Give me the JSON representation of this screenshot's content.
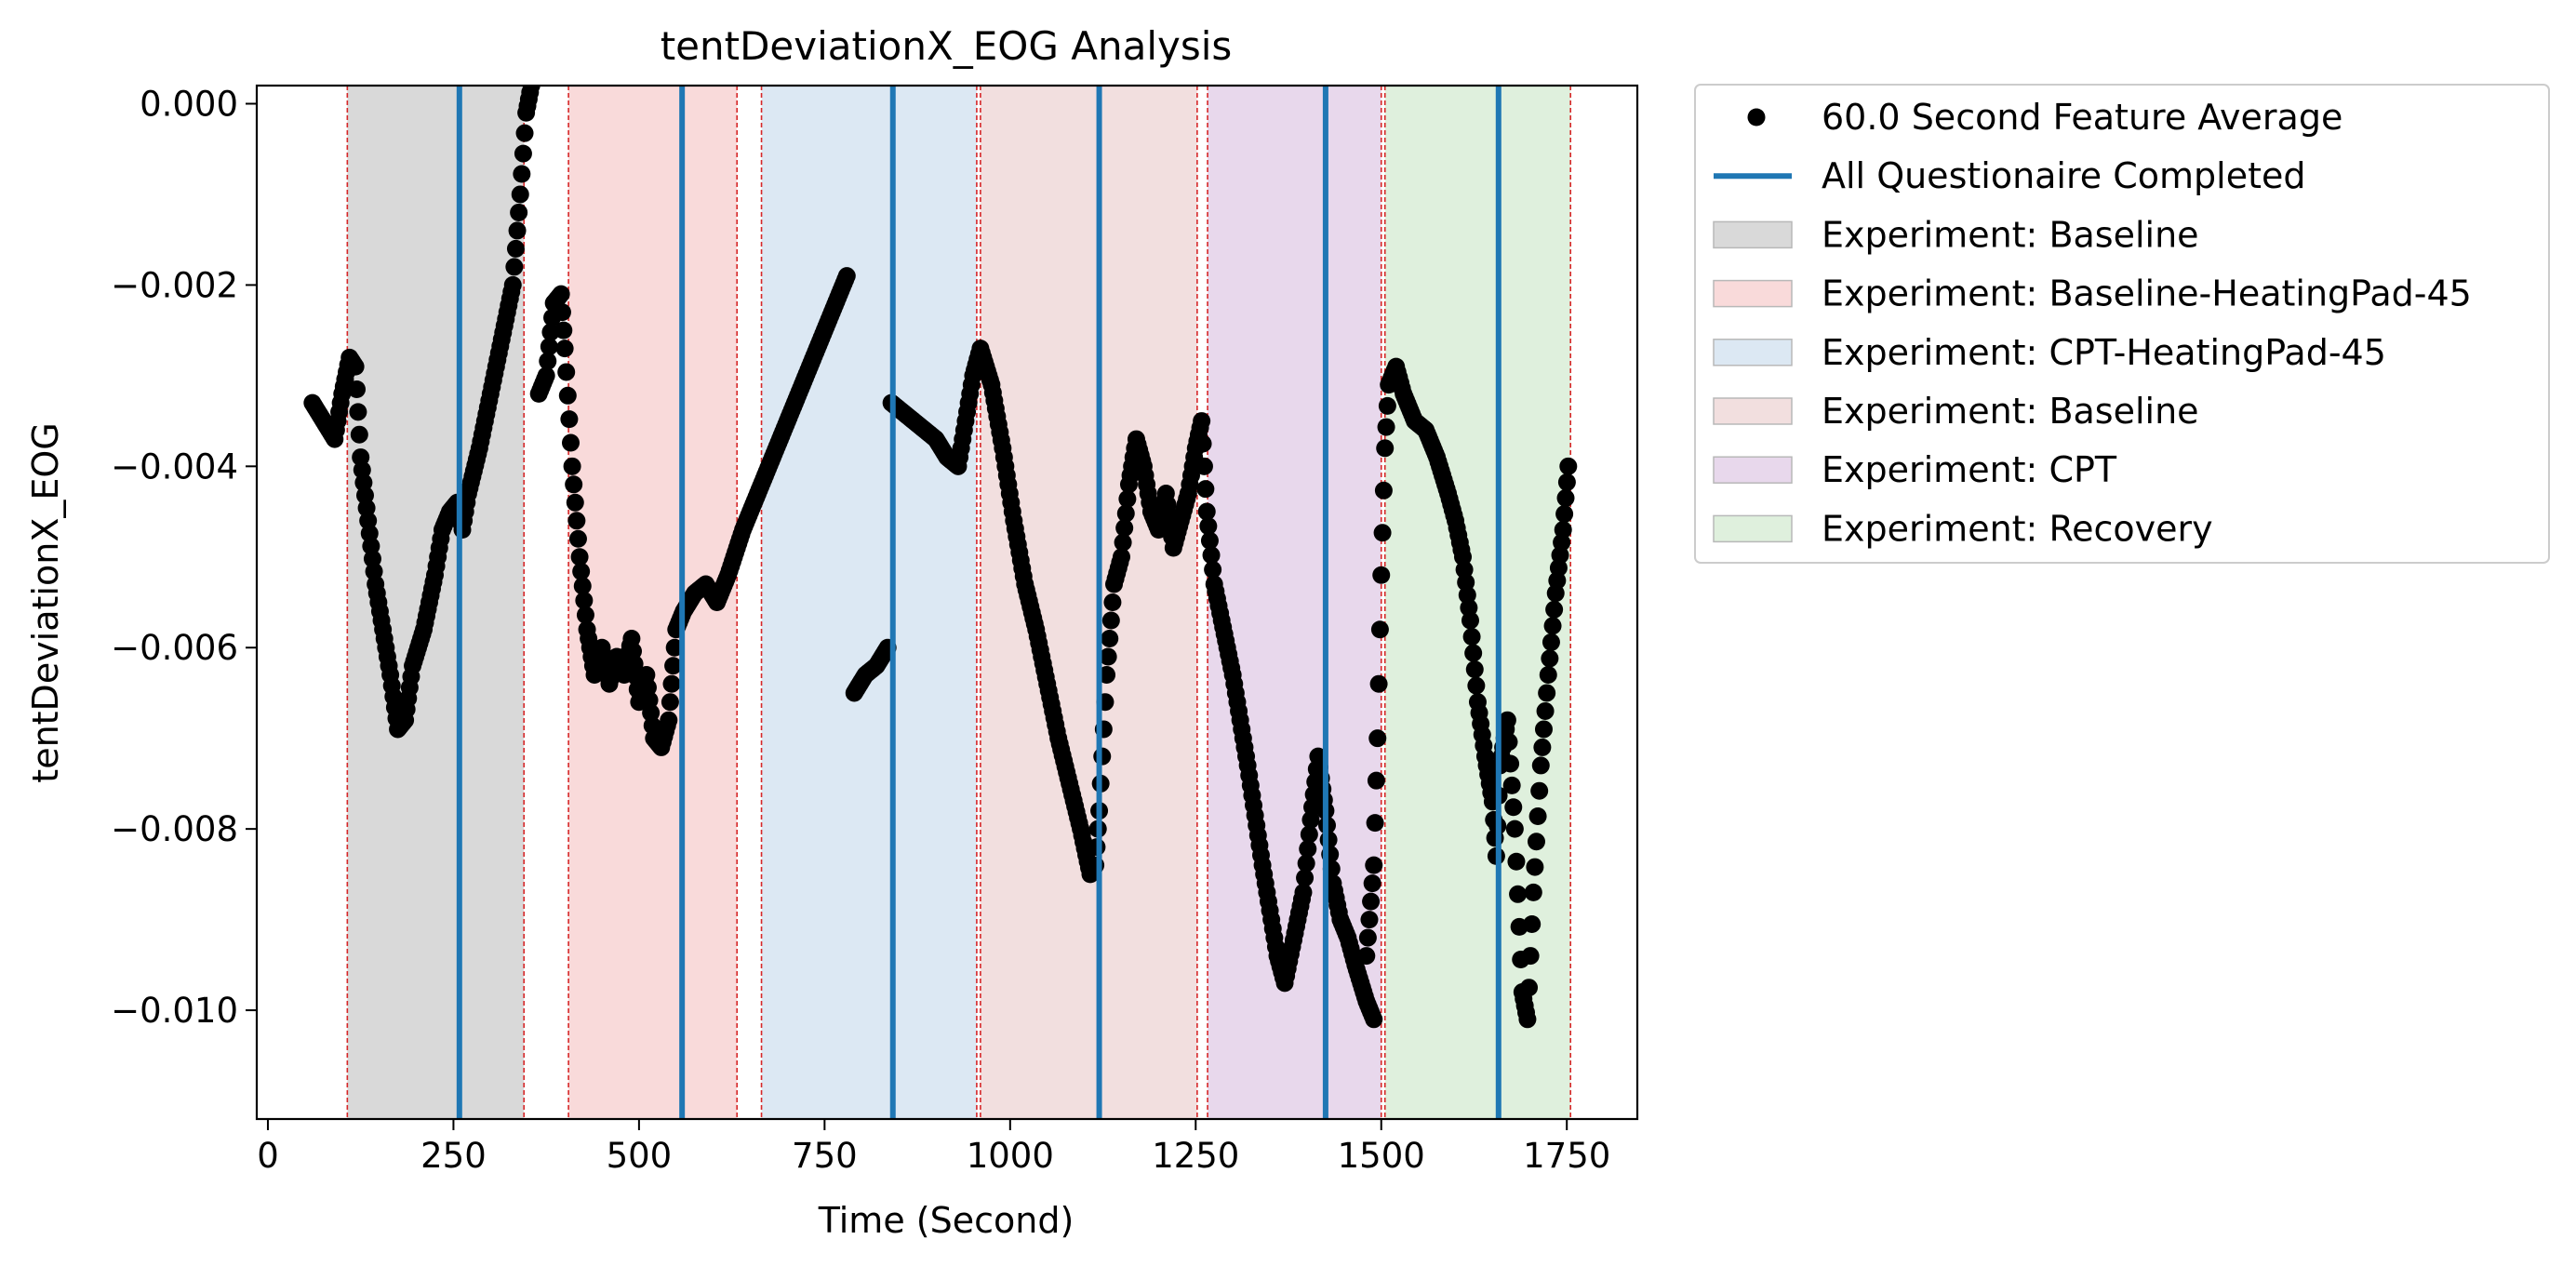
{
  "chart_data": {
    "type": "scatter",
    "title": "tentDeviationX_EOG Analysis",
    "xlabel": "Time (Second)",
    "ylabel": "tentDeviationX_EOG",
    "xlim": [
      -15,
      1845
    ],
    "ylim": [
      -0.0112,
      0.0002
    ],
    "x_ticks": [
      0,
      250,
      500,
      750,
      1000,
      1250,
      1500,
      1750
    ],
    "x_tick_labels": [
      "0",
      "250",
      "500",
      "750",
      "1000",
      "1250",
      "1500",
      "1750"
    ],
    "y_ticks": [
      0.0,
      -0.002,
      -0.004,
      -0.006,
      -0.008,
      -0.01
    ],
    "y_tick_labels": [
      "0.000",
      "−0.002",
      "−0.004",
      "−0.006",
      "−0.008",
      "−0.010"
    ],
    "grid": false,
    "legend_position": "outside-right",
    "legend": [
      {
        "label": "60.0 Second Feature Average",
        "kind": "marker",
        "color": "#000000"
      },
      {
        "label": "All Questionaire Completed",
        "kind": "line",
        "color": "#1f77b4"
      },
      {
        "label": "Experiment: Baseline",
        "kind": "patch",
        "color": "#d9d9d9"
      },
      {
        "label": "Experiment: Baseline-HeatingPad-45",
        "kind": "patch",
        "color": "#f9dada"
      },
      {
        "label": "Experiment: CPT-HeatingPad-45",
        "kind": "patch",
        "color": "#dce8f3"
      },
      {
        "label": "Experiment: Baseline",
        "kind": "patch",
        "color": "#f2dfdf"
      },
      {
        "label": "Experiment: CPT",
        "kind": "patch",
        "color": "#e8d8ec"
      },
      {
        "label": "Experiment: Recovery",
        "kind": "patch",
        "color": "#dff0dd"
      }
    ],
    "phases": [
      {
        "name": "Experiment: Baseline",
        "start": 107,
        "end": 345,
        "color": "#d9d9d9"
      },
      {
        "name": "Experiment: Baseline-HeatingPad-45",
        "start": 405,
        "end": 632,
        "color": "#f9dada"
      },
      {
        "name": "Experiment: CPT-HeatingPad-45",
        "start": 665,
        "end": 955,
        "color": "#dce8f3"
      },
      {
        "name": "Experiment: Baseline",
        "start": 960,
        "end": 1252,
        "color": "#f2dfdf"
      },
      {
        "name": "Experiment: CPT",
        "start": 1266,
        "end": 1500,
        "color": "#e8d8ec"
      },
      {
        "name": "Experiment: Recovery",
        "start": 1505,
        "end": 1755,
        "color": "#dff0dd"
      }
    ],
    "phase_boundaries": [
      107,
      345,
      405,
      632,
      665,
      955,
      960,
      1252,
      1266,
      1500,
      1505,
      1755
    ],
    "questionnaire_completed": [
      258,
      558,
      842,
      1120,
      1425,
      1658
    ],
    "series": [
      {
        "name": "60.0 Second Feature Average",
        "color": "#000000",
        "segments": [
          [
            [
              60,
              -0.0033
            ],
            [
              75,
              -0.0035
            ],
            [
              90,
              -0.0037
            ],
            [
              100,
              -0.0032
            ],
            [
              110,
              -0.0028
            ],
            [
              118,
              -0.0029
            ],
            [
              125,
              -0.0039
            ],
            [
              135,
              -0.0046
            ],
            [
              145,
              -0.0053
            ],
            [
              155,
              -0.0058
            ],
            [
              165,
              -0.0063
            ],
            [
              175,
              -0.0069
            ],
            [
              185,
              -0.0068
            ],
            [
              195,
              -0.0062
            ],
            [
              210,
              -0.0058
            ],
            [
              225,
              -0.0052
            ],
            [
              235,
              -0.0047
            ],
            [
              245,
              -0.0045
            ],
            [
              255,
              -0.0044
            ],
            [
              262,
              -0.0047
            ],
            [
              270,
              -0.0043
            ],
            [
              285,
              -0.0038
            ],
            [
              300,
              -0.0032
            ],
            [
              315,
              -0.0026
            ],
            [
              330,
              -0.002
            ],
            [
              340,
              -0.001
            ],
            [
              348,
              -0.0001
            ],
            [
              355,
              0.0002
            ]
          ],
          [
            [
              365,
              -0.0032
            ],
            [
              375,
              -0.003
            ],
            [
              385,
              -0.0022
            ],
            [
              395,
              -0.0021
            ],
            [
              400,
              -0.0027
            ],
            [
              410,
              -0.004
            ],
            [
              420,
              -0.005
            ],
            [
              430,
              -0.0058
            ],
            [
              440,
              -0.0063
            ],
            [
              450,
              -0.006
            ],
            [
              460,
              -0.0064
            ],
            [
              470,
              -0.0061
            ],
            [
              480,
              -0.0063
            ],
            [
              490,
              -0.0059
            ],
            [
              500,
              -0.0066
            ],
            [
              510,
              -0.0063
            ],
            [
              520,
              -0.007
            ],
            [
              530,
              -0.0071
            ],
            [
              540,
              -0.0068
            ],
            [
              550,
              -0.0058
            ],
            [
              560,
              -0.0056
            ],
            [
              575,
              -0.0054
            ],
            [
              590,
              -0.0053
            ],
            [
              605,
              -0.0055
            ],
            [
              620,
              -0.0052
            ],
            [
              640,
              -0.0047
            ],
            [
              660,
              -0.0043
            ],
            [
              680,
              -0.0039
            ],
            [
              700,
              -0.0035
            ],
            [
              720,
              -0.0031
            ],
            [
              740,
              -0.0027
            ],
            [
              760,
              -0.0023
            ],
            [
              780,
              -0.0019
            ]
          ],
          [
            [
              790,
              -0.0065
            ],
            [
              805,
              -0.0063
            ],
            [
              820,
              -0.0062
            ],
            [
              835,
              -0.006
            ]
          ],
          [
            [
              840,
              -0.0033
            ],
            [
              855,
              -0.0034
            ],
            [
              870,
              -0.0035
            ],
            [
              885,
              -0.0036
            ],
            [
              900,
              -0.0037
            ],
            [
              915,
              -0.0039
            ],
            [
              930,
              -0.004
            ],
            [
              940,
              -0.0035
            ],
            [
              950,
              -0.003
            ],
            [
              960,
              -0.0027
            ],
            [
              975,
              -0.0031
            ],
            [
              990,
              -0.0038
            ],
            [
              1005,
              -0.0046
            ],
            [
              1020,
              -0.0053
            ],
            [
              1035,
              -0.0058
            ],
            [
              1050,
              -0.0064
            ],
            [
              1065,
              -0.007
            ],
            [
              1080,
              -0.0075
            ],
            [
              1095,
              -0.008
            ],
            [
              1108,
              -0.0085
            ],
            [
              1115,
              -0.0084
            ],
            [
              1120,
              -0.0078
            ],
            [
              1130,
              -0.0063
            ],
            [
              1140,
              -0.0053
            ],
            [
              1150,
              -0.005
            ],
            [
              1160,
              -0.0042
            ],
            [
              1170,
              -0.0037
            ],
            [
              1180,
              -0.004
            ],
            [
              1190,
              -0.0045
            ],
            [
              1200,
              -0.0047
            ],
            [
              1210,
              -0.0043
            ],
            [
              1220,
              -0.0049
            ],
            [
              1230,
              -0.0046
            ],
            [
              1240,
              -0.0043
            ],
            [
              1250,
              -0.0038
            ],
            [
              1258,
              -0.0035
            ],
            [
              1265,
              -0.0045
            ],
            [
              1275,
              -0.0053
            ],
            [
              1285,
              -0.0057
            ],
            [
              1300,
              -0.0063
            ],
            [
              1320,
              -0.0073
            ],
            [
              1340,
              -0.0084
            ],
            [
              1360,
              -0.0094
            ],
            [
              1370,
              -0.0097
            ],
            [
              1380,
              -0.0093
            ],
            [
              1395,
              -0.0087
            ],
            [
              1405,
              -0.0079
            ],
            [
              1415,
              -0.0072
            ],
            [
              1425,
              -0.0078
            ],
            [
              1435,
              -0.0086
            ],
            [
              1445,
              -0.009
            ],
            [
              1455,
              -0.0092
            ],
            [
              1465,
              -0.0095
            ],
            [
              1480,
              -0.0099
            ],
            [
              1490,
              -0.0101
            ]
          ],
          [
            [
              1480,
              -0.0094
            ],
            [
              1490,
              -0.0084
            ],
            [
              1495,
              -0.007
            ],
            [
              1500,
              -0.0052
            ],
            [
              1505,
              -0.0038
            ],
            [
              1510,
              -0.0031
            ],
            [
              1520,
              -0.0029
            ],
            [
              1530,
              -0.0032
            ],
            [
              1545,
              -0.0035
            ],
            [
              1560,
              -0.0036
            ],
            [
              1575,
              -0.0039
            ],
            [
              1590,
              -0.0043
            ],
            [
              1600,
              -0.0046
            ],
            [
              1610,
              -0.005
            ],
            [
              1620,
              -0.0057
            ],
            [
              1630,
              -0.0066
            ],
            [
              1640,
              -0.0072
            ],
            [
              1650,
              -0.0077
            ],
            [
              1655,
              -0.0083
            ],
            [
              1660,
              -0.0073
            ],
            [
              1670,
              -0.0068
            ],
            [
              1680,
              -0.008
            ],
            [
              1690,
              -0.0098
            ],
            [
              1697,
              -0.0101
            ],
            [
              1705,
              -0.0087
            ],
            [
              1715,
              -0.0073
            ],
            [
              1725,
              -0.0063
            ],
            [
              1735,
              -0.0054
            ],
            [
              1745,
              -0.0047
            ],
            [
              1752,
              -0.004
            ]
          ]
        ]
      }
    ]
  }
}
